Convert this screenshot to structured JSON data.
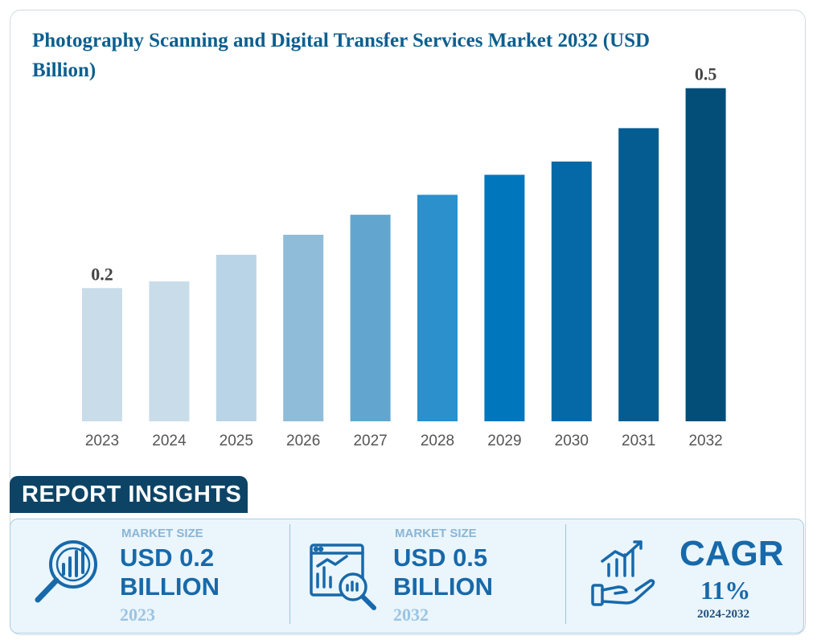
{
  "chart_data": {
    "type": "bar",
    "title": "Photography Scanning and Digital Transfer Services Market 2032 (USD Billion)",
    "categories": [
      "2023",
      "2024",
      "2025",
      "2026",
      "2027",
      "2028",
      "2029",
      "2030",
      "2031",
      "2032"
    ],
    "values": [
      0.2,
      0.21,
      0.25,
      0.28,
      0.31,
      0.34,
      0.37,
      0.39,
      0.44,
      0.5
    ],
    "data_labels": [
      {
        "index": 0,
        "text": "0.2"
      },
      {
        "index": 9,
        "text": "0.5"
      }
    ],
    "bar_colors": [
      "#c9dcea",
      "#c9dcea",
      "#b9d4e6",
      "#8fbcd9",
      "#62a6d0",
      "#2b90cc",
      "#0077bd",
      "#0569a7",
      "#045c91",
      "#034e78"
    ],
    "ylim": [
      0,
      0.56
    ],
    "grid": false,
    "legend": "none",
    "xlabel": "",
    "ylabel": ""
  },
  "insights": {
    "heading": "REPORT INSIGHTS",
    "panels": [
      {
        "label": "MARKET SIZE",
        "value_line1": "USD 0.2",
        "value_line2": "BILLION",
        "year": "2023",
        "icon": "magnifier-chart-icon"
      },
      {
        "label": "MARKET SIZE",
        "value_line1": "USD 0.5",
        "value_line2": "BILLION",
        "year": "2032",
        "icon": "dashboard-magnifier-icon"
      },
      {
        "label": "CAGR",
        "value": "11%",
        "period": "2024-2032",
        "icon": "hand-growth-chart-icon"
      }
    ]
  },
  "colors": {
    "title": "#0b5f8f",
    "accent": "#1769aa",
    "tab": "#0d4466",
    "panel_bg": "#eaf5fc"
  }
}
